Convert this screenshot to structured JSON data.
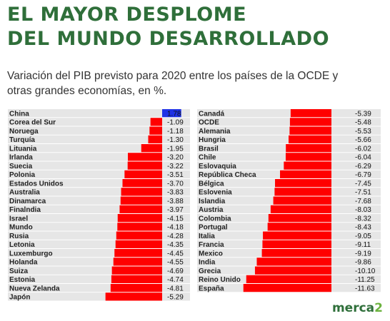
{
  "title_lines": [
    "EL MAYOR DESPLOME",
    "DEL MUNDO DESARROLLADO"
  ],
  "subtitle_lines": [
    "Variación del PIB previsto para 2020 entre los países de la OCDE y",
    "otras grandes economías, en %."
  ],
  "brand": {
    "text": "merca",
    "digit": "2"
  },
  "colors": {
    "title": "#2f6f3a",
    "positive": "#1f32e6",
    "negative": "#ff0000",
    "row_bg": "#e6e6e6",
    "brand_accent": "#6cb33f"
  },
  "chart_data": [
    {
      "type": "bar",
      "orientation": "horizontal",
      "unit": "%",
      "categories": [
        "China",
        "Corea del Sur",
        "Noruega",
        "Turquía",
        "Lituania",
        "Irlanda",
        "Suecia",
        "Polonia",
        "Estados Unidos",
        "Australia",
        "Dinamarca",
        "Finalndia",
        "Israel",
        "Mundo",
        "Rusia",
        "Letonia",
        "Luxemburgo",
        "Holanda",
        "Suiza",
        "Estonia",
        "Nueva Zelanda",
        "Japón"
      ],
      "values": [
        1.78,
        -1.09,
        -1.18,
        -1.3,
        -1.95,
        -3.2,
        -3.22,
        -3.51,
        -3.7,
        -3.83,
        -3.88,
        -3.97,
        -4.15,
        -4.18,
        -4.28,
        -4.35,
        -4.45,
        -4.55,
        -4.69,
        -4.74,
        -4.81,
        -5.29
      ],
      "labels": [
        "1.78",
        "-1.09",
        "-1.18",
        "-1.30",
        "-1.95",
        "-3.20",
        "-3.22",
        "-3.51",
        "-3.70",
        "-3.83",
        "-3.88",
        "-3.97",
        "-4.15",
        "-4.18",
        "-4.28",
        "-4.35",
        "-4.45",
        "-4.55",
        "-4.69",
        "-4.74",
        "-4.81",
        "-5.29"
      ]
    },
    {
      "type": "bar",
      "orientation": "horizontal",
      "unit": "%",
      "categories": [
        "Canadá",
        "OCDE",
        "Alemania",
        "Hungria",
        "Brasil",
        "Chile",
        "Eslovaquia",
        "República Checa",
        "Bélgica",
        "Eslovenia",
        "Islandia",
        "Austria",
        "Colombia",
        "Portugal",
        "Italia",
        "Francia",
        "Mexico",
        "India",
        "Grecia",
        "Reino Unido",
        "España"
      ],
      "values": [
        -5.39,
        -5.48,
        -5.53,
        -5.66,
        -6.02,
        -6.04,
        -6.29,
        -6.79,
        -7.45,
        -7.51,
        -7.68,
        -8.03,
        -8.32,
        -8.43,
        -9.05,
        -9.11,
        -9.19,
        -9.86,
        -10.1,
        -11.25,
        -11.63
      ],
      "labels": [
        "-5.39",
        "-5.48",
        "-5.53",
        "-5.66",
        "-6.02",
        "-6.04",
        "-6.29",
        "-6.79",
        "-7.45",
        "-7.51",
        "-7.68",
        "-8.03",
        "-8.32",
        "-8.43",
        "-9.05",
        "-9.11",
        "-9.19",
        "-9.86",
        "-10.10",
        "-11.25",
        "-11.63"
      ]
    }
  ]
}
